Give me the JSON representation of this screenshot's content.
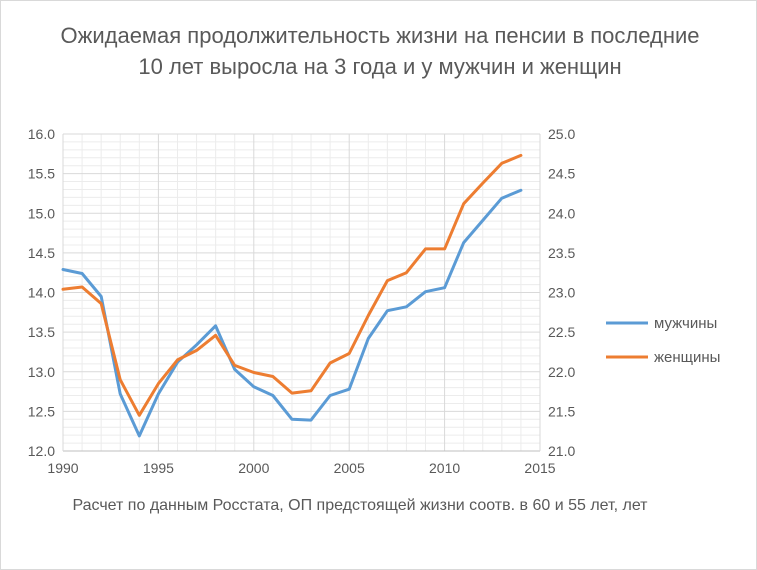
{
  "chart_data": {
    "type": "line",
    "title": "Ожидаемая продолжительность жизни на пенсии в последние 10 лет выросла на 3 года и у мужчин и женщин",
    "caption": "Расчет по данным Росстата, ОП предстоящей жизни соотв. в 60 и 55 лет, лет",
    "x": [
      1990,
      1991,
      1992,
      1993,
      1994,
      1995,
      1996,
      1997,
      1998,
      1999,
      2000,
      2001,
      2002,
      2003,
      2004,
      2005,
      2006,
      2007,
      2008,
      2009,
      2010,
      2011,
      2012,
      2013,
      2014
    ],
    "xlim": [
      1990,
      2015
    ],
    "x_ticks": [
      "1990",
      "1995",
      "2000",
      "2005",
      "2010",
      "2015"
    ],
    "y_left_lim": [
      12.0,
      16.0
    ],
    "y_left_ticks": [
      "16.0",
      "15.5",
      "15.0",
      "14.5",
      "14.0",
      "13.5",
      "13.0",
      "12.5",
      "12.0"
    ],
    "y_right_lim": [
      21.0,
      25.0
    ],
    "y_right_ticks": [
      "25.0",
      "24.5",
      "24.0",
      "23.5",
      "23.0",
      "22.5",
      "22.0",
      "21.5",
      "21.0"
    ],
    "grid": true,
    "legend_position": "right",
    "series": [
      {
        "name": "мужчины",
        "axis": "left",
        "color": "#5b9bd5",
        "values": [
          14.29,
          14.24,
          13.95,
          12.72,
          12.19,
          12.72,
          13.12,
          13.34,
          13.58,
          13.03,
          12.81,
          12.7,
          12.4,
          12.39,
          12.7,
          12.78,
          13.42,
          13.77,
          13.82,
          14.01,
          14.06,
          14.63,
          14.91,
          15.19,
          15.29
        ]
      },
      {
        "name": "женщины",
        "axis": "right",
        "color": "#ed7d31",
        "values": [
          23.04,
          23.07,
          22.86,
          21.9,
          21.45,
          21.85,
          22.15,
          22.27,
          22.46,
          22.08,
          21.99,
          21.94,
          21.73,
          21.76,
          22.11,
          22.23,
          22.71,
          23.15,
          23.25,
          23.55,
          23.55,
          24.12,
          24.38,
          24.63,
          24.73
        ]
      }
    ]
  }
}
